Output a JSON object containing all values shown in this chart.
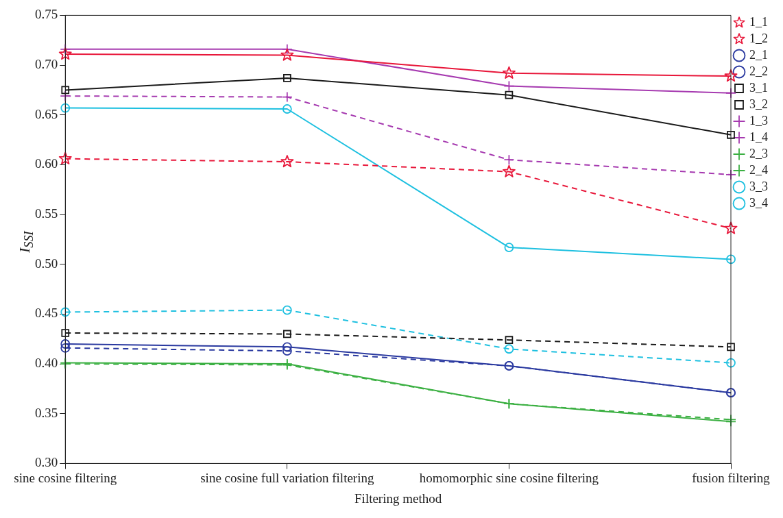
{
  "chart_data": {
    "type": "line",
    "xlabel": "Filtering method",
    "ylabel": "I$_{SSI}$",
    "categories": [
      "sine cosine filtering",
      "sine cosine full variation filtering",
      "homomorphic sine cosine filtering",
      "fusion filtering"
    ],
    "ylim": [
      0.3,
      0.75
    ],
    "yticks": [
      {
        "value": 0.3,
        "label": "0.30"
      },
      {
        "value": 0.35,
        "label": "0.35"
      },
      {
        "value": 0.4,
        "label": "0.40"
      },
      {
        "value": 0.45,
        "label": "0.45"
      },
      {
        "value": 0.5,
        "label": "0.50"
      },
      {
        "value": 0.55,
        "label": "0.55"
      },
      {
        "value": 0.6,
        "label": "0.60"
      },
      {
        "value": 0.65,
        "label": "0.65"
      },
      {
        "value": 0.7,
        "label": "0.70"
      },
      {
        "value": 0.75,
        "label": "0.75"
      }
    ],
    "grid": false,
    "legend": "top right",
    "series": [
      {
        "name": "1_1",
        "color": "#e8173a",
        "marker": "star",
        "line_style": "solid",
        "values": [
          0.711,
          0.71,
          0.692,
          0.689
        ]
      },
      {
        "name": "1_2",
        "color": "#e8173a",
        "marker": "star",
        "line_style": "dashed",
        "values": [
          0.606,
          0.603,
          0.593,
          0.536
        ]
      },
      {
        "name": "2_1",
        "color": "#2b3aa0",
        "marker": "circle",
        "line_style": "solid",
        "values": [
          0.42,
          0.417,
          0.398,
          0.371
        ]
      },
      {
        "name": "2_2",
        "color": "#2b3aa0",
        "marker": "circle",
        "line_style": "dashed",
        "values": [
          0.416,
          0.413,
          0.398,
          0.371
        ]
      },
      {
        "name": "3_1",
        "color": "#1a1a1a",
        "marker": "square",
        "line_style": "solid",
        "values": [
          0.675,
          0.687,
          0.67,
          0.63
        ]
      },
      {
        "name": "3_2",
        "color": "#1a1a1a",
        "marker": "square",
        "line_style": "dashed",
        "values": [
          0.431,
          0.43,
          0.424,
          0.417
        ]
      },
      {
        "name": "1_3",
        "color": "#a63ab0",
        "marker": "cross",
        "line_style": "solid",
        "values": [
          0.716,
          0.716,
          0.679,
          0.672
        ]
      },
      {
        "name": "1_4",
        "color": "#a63ab0",
        "marker": "cross",
        "line_style": "dashed",
        "values": [
          0.669,
          0.668,
          0.605,
          0.59
        ]
      },
      {
        "name": "2_3",
        "color": "#3cb043",
        "marker": "cross",
        "line_style": "solid",
        "values": [
          0.401,
          0.4,
          0.36,
          0.342
        ]
      },
      {
        "name": "2_4",
        "color": "#3cb043",
        "marker": "cross",
        "line_style": "dashed",
        "values": [
          0.4,
          0.399,
          0.36,
          0.344
        ]
      },
      {
        "name": "3_3",
        "color": "#1ec0e0",
        "marker": "circle",
        "line_style": "solid",
        "values": [
          0.657,
          0.656,
          0.517,
          0.505
        ]
      },
      {
        "name": "3_4",
        "color": "#1ec0e0",
        "marker": "circle",
        "line_style": "dashed",
        "values": [
          0.452,
          0.454,
          0.415,
          0.401
        ]
      }
    ]
  }
}
